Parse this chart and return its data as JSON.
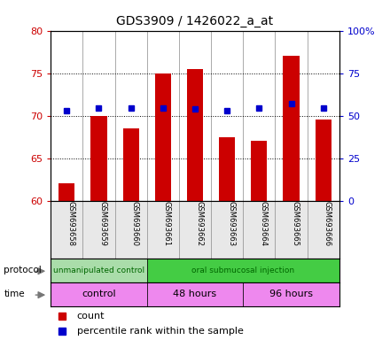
{
  "title": "GDS3909 / 1426022_a_at",
  "samples": [
    "GSM693658",
    "GSM693659",
    "GSM693660",
    "GSM693661",
    "GSM693662",
    "GSM693663",
    "GSM693664",
    "GSM693665",
    "GSM693666"
  ],
  "count_values": [
    62.0,
    70.0,
    68.5,
    75.0,
    75.5,
    67.5,
    67.0,
    77.0,
    69.5
  ],
  "percentile_values": [
    53.0,
    54.5,
    54.5,
    54.5,
    54.0,
    53.0,
    54.5,
    57.0,
    54.5
  ],
  "ylim_left": [
    60,
    80
  ],
  "ylim_right": [
    0,
    100
  ],
  "yticks_left": [
    60,
    65,
    70,
    75,
    80
  ],
  "yticks_right": [
    0,
    25,
    50,
    75,
    100
  ],
  "bar_color": "#cc0000",
  "dot_color": "#0000cc",
  "bar_bottom": 60,
  "bar_width": 0.5,
  "protocol_groups": [
    {
      "label": "unmanipulated control",
      "start": 0,
      "end": 3,
      "color": "#aaddaa"
    },
    {
      "label": "oral submucosal injection",
      "start": 3,
      "end": 9,
      "color": "#44cc44"
    }
  ],
  "time_groups": [
    {
      "label": "control",
      "start": 0,
      "end": 3,
      "color": "#ee88ee"
    },
    {
      "label": "48 hours",
      "start": 3,
      "end": 6,
      "color": "#ee88ee"
    },
    {
      "label": "96 hours",
      "start": 6,
      "end": 9,
      "color": "#ee88ee"
    }
  ],
  "legend_count_label": "count",
  "legend_percentile_label": "percentile rank within the sample",
  "label_color_left": "#cc0000",
  "label_color_right": "#0000cc",
  "bg_color": "#e8e8e8"
}
